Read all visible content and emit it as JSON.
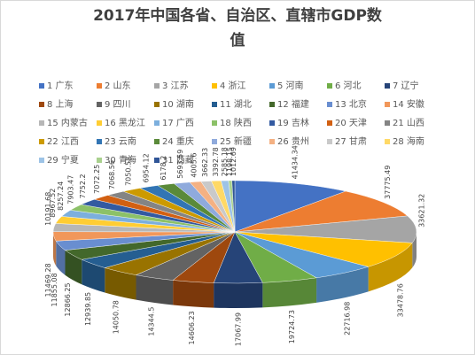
{
  "chart_data": {
    "type": "pie3d",
    "title": "2017年中国各省、自治区、直辖市GDP数值",
    "categories": [
      "1 广东",
      "2 山东",
      "3 江苏",
      "4 浙江",
      "5 河南",
      "6 河北",
      "7 辽宁",
      "8 上海",
      "9 四川",
      "10 湖南",
      "11 湖北",
      "12 福建",
      "13 北京",
      "14 安徽",
      "15 内蒙古",
      "16 黑龙江",
      "17 广西",
      "18 陕西",
      "19 吉林",
      "20 天津",
      "21 山西",
      "22 江西",
      "23 云南",
      "24 重庆",
      "25 新疆",
      "26 贵州",
      "27 甘肃",
      "28 海南",
      "29 宁夏",
      "30 青海",
      "31 西藏"
    ],
    "values": [
      41434.34,
      37775.49,
      33621.32,
      33478.76,
      22716.98,
      19724.73,
      17067.99,
      14606.23,
      14344.5,
      14050.78,
      12939.85,
      12866.25,
      11855.08,
      11469.28,
      10191.68,
      8967.52,
      8257.24,
      7903.47,
      7752.2,
      7072.25,
      7068.56,
      7050.58,
      6954.12,
      6178.2,
      5693.59,
      4005.6,
      3662.33,
      3392.78,
      2585.18,
      1198.15,
      1012.69
    ],
    "colors": [
      "#4472C4",
      "#ED7D31",
      "#A5A5A5",
      "#FFC000",
      "#5B9BD5",
      "#70AD47",
      "#264478",
      "#9E480E",
      "#636363",
      "#997300",
      "#255E91",
      "#43682B",
      "#698ED0",
      "#F1975A",
      "#B7B7B7",
      "#FFCD33",
      "#7CAFDD",
      "#8CC168",
      "#335AA1",
      "#D26012",
      "#848484",
      "#CC9A00",
      "#3275B4",
      "#5A8A39",
      "#8FAADC",
      "#F4B183",
      "#C9C9C9",
      "#FFD966",
      "#9DC3E6",
      "#A9D18E",
      "#2F5597"
    ],
    "legend": "top"
  }
}
